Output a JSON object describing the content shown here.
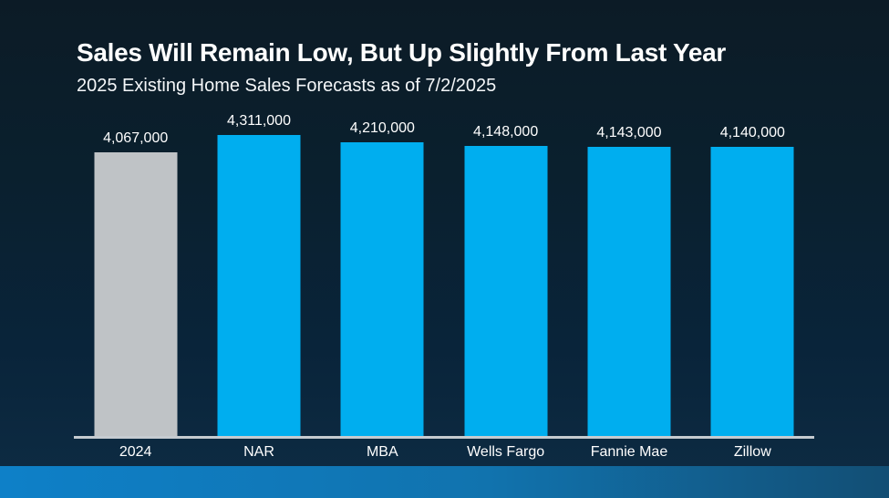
{
  "chart_data": {
    "type": "bar",
    "title": "Sales Will Remain Low, But Up Slightly From Last Year",
    "subtitle": "2025 Existing Home Sales Forecasts as of 7/2/2025",
    "categories": [
      "2024",
      "NAR",
      "MBA",
      "Wells Fargo",
      "Fannie Mae",
      "Zillow"
    ],
    "values": [
      4067000,
      4311000,
      4210000,
      4148000,
      4143000,
      4140000
    ],
    "value_labels": [
      "4,067,000",
      "4,311,000",
      "4,210,000",
      "4,148,000",
      "4,143,000",
      "4,140,000"
    ],
    "bar_colors": [
      "#BFC3C6",
      "#00AEEF",
      "#00AEEF",
      "#00AEEF",
      "#00AEEF",
      "#00AEEF"
    ],
    "xlabel": "",
    "ylabel": "",
    "ylim": [
      0,
      4311000
    ],
    "grid": false,
    "legend": false,
    "data_labels_position": "above-bars",
    "baseline_axis": "x"
  },
  "colors": {
    "background_top": "#0C1B26",
    "background_bottom": "#0E2C44",
    "bar_blue": "#00AEEF",
    "bar_gray_2024": "#BFC3C6",
    "axis_line": "#C5CBD0",
    "text": "#FFFFFF",
    "accent_strip_left": "#0E80C8",
    "accent_strip_right": "#124E74"
  }
}
